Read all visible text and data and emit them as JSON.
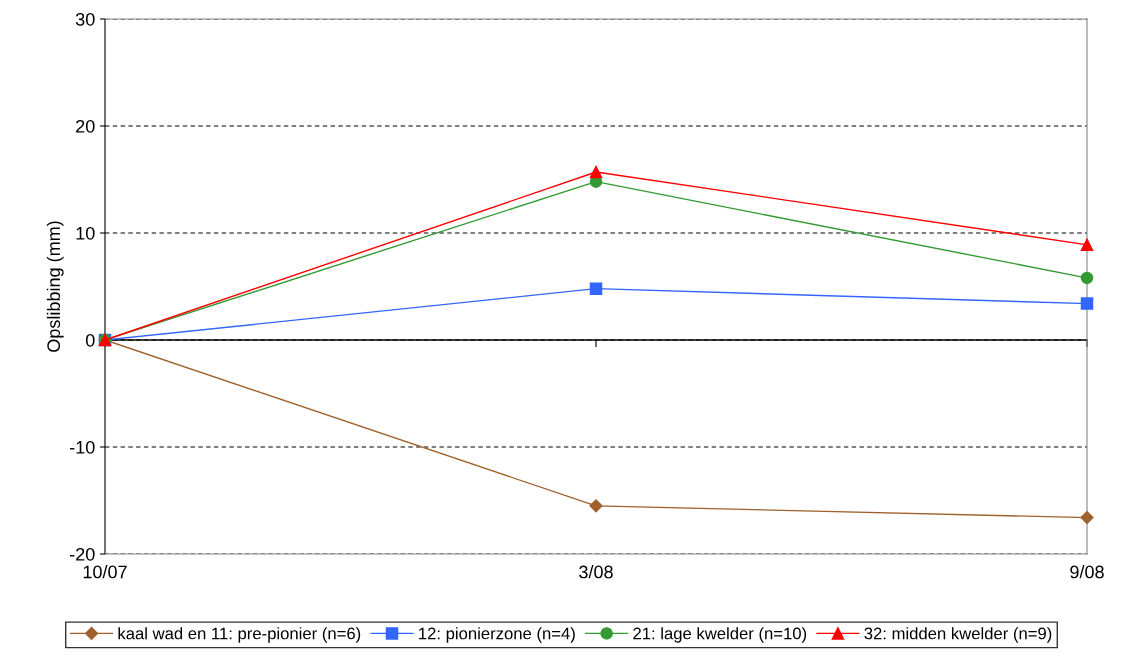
{
  "chart_data": {
    "type": "line",
    "ylabel": "Opslibbing (mm)",
    "categories": [
      "10/07",
      "3/08",
      "9/08"
    ],
    "series": [
      {
        "name": "kaal wad en 11: pre-pionier (n=6)",
        "color": "#a0622d",
        "marker": "diamond",
        "values": [
          0,
          -15.5,
          -16.6
        ]
      },
      {
        "name": "12: pionierzone (n=4)",
        "color": "#3366ff",
        "marker": "square",
        "values": [
          0,
          4.8,
          3.4
        ]
      },
      {
        "name": "21: lage kwelder (n=10)",
        "color": "#339933",
        "marker": "circle",
        "values": [
          0,
          14.8,
          5.8
        ]
      },
      {
        "name": "32: midden kwelder (n=9)",
        "color": "#ff0000",
        "marker": "triangle",
        "values": [
          0,
          15.7,
          8.9
        ]
      }
    ],
    "ylim": [
      -20,
      30
    ],
    "yticks": [
      -20,
      -10,
      0,
      10,
      20,
      30
    ],
    "grid": "y",
    "legend": "bottom",
    "line_style": "solid"
  }
}
